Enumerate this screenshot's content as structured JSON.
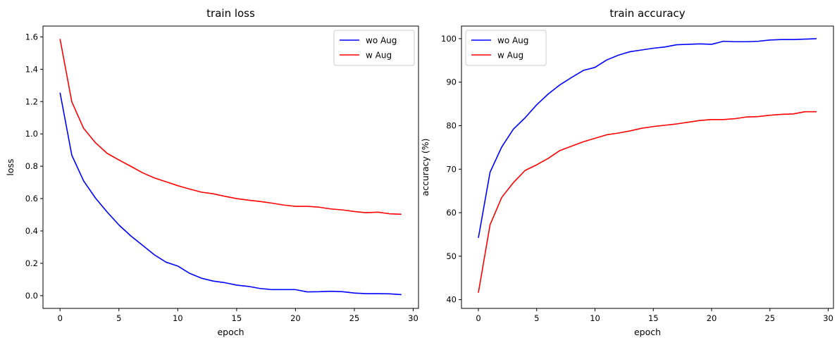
{
  "chart_data": [
    {
      "type": "line",
      "title": "train loss",
      "xlabel": "epoch",
      "ylabel": "loss",
      "xlim": [
        -1.45,
        30.45
      ],
      "ylim": [
        -0.079,
        1.667
      ],
      "xticks": [
        0,
        5,
        10,
        15,
        20,
        25,
        30
      ],
      "yticks": [
        0.0,
        0.2,
        0.4,
        0.6,
        0.8,
        1.0,
        1.2,
        1.4,
        1.6
      ],
      "grid": false,
      "legend_loc": "upper right",
      "x": [
        0,
        1,
        2,
        3,
        4,
        5,
        6,
        7,
        8,
        9,
        10,
        11,
        12,
        13,
        14,
        15,
        16,
        17,
        18,
        19,
        20,
        21,
        22,
        23,
        24,
        25,
        26,
        27,
        28,
        29
      ],
      "series": [
        {
          "name": "wo Aug",
          "color": "#0000ff",
          "values": [
            1.255,
            0.868,
            0.71,
            0.604,
            0.517,
            0.437,
            0.37,
            0.312,
            0.253,
            0.207,
            0.183,
            0.138,
            0.108,
            0.09,
            0.08,
            0.065,
            0.057,
            0.044,
            0.037,
            0.037,
            0.037,
            0.023,
            0.024,
            0.027,
            0.024,
            0.016,
            0.012,
            0.012,
            0.011,
            0.006
          ]
        },
        {
          "name": "w Aug",
          "color": "#ff0000",
          "values": [
            1.587,
            1.198,
            1.035,
            0.946,
            0.88,
            0.839,
            0.8,
            0.76,
            0.728,
            0.704,
            0.68,
            0.659,
            0.64,
            0.63,
            0.614,
            0.6,
            0.59,
            0.582,
            0.572,
            0.56,
            0.552,
            0.552,
            0.547,
            0.536,
            0.53,
            0.52,
            0.513,
            0.516,
            0.506,
            0.503
          ]
        }
      ]
    },
    {
      "type": "line",
      "title": "train accuracy",
      "xlabel": "epoch",
      "ylabel": "accuracy (%)",
      "xlim": [
        -1.45,
        30.45
      ],
      "ylim": [
        38.0,
        102.9
      ],
      "xticks": [
        0,
        5,
        10,
        15,
        20,
        25,
        30
      ],
      "yticks": [
        40,
        50,
        60,
        70,
        80,
        90,
        100
      ],
      "grid": false,
      "legend_loc": "upper left",
      "x": [
        0,
        1,
        2,
        3,
        4,
        5,
        6,
        7,
        8,
        9,
        10,
        11,
        12,
        13,
        14,
        15,
        16,
        17,
        18,
        19,
        20,
        21,
        22,
        23,
        24,
        25,
        26,
        27,
        28,
        29
      ],
      "series": [
        {
          "name": "wo Aug",
          "color": "#0000ff",
          "values": [
            54.2,
            69.3,
            75.1,
            79.2,
            81.8,
            84.8,
            87.3,
            89.4,
            91.1,
            92.7,
            93.4,
            95.1,
            96.2,
            97.0,
            97.4,
            97.8,
            98.1,
            98.6,
            98.7,
            98.8,
            98.7,
            99.4,
            99.3,
            99.3,
            99.4,
            99.7,
            99.8,
            99.8,
            99.9,
            100.0
          ]
        },
        {
          "name": "w Aug",
          "color": "#ff0000",
          "values": [
            41.6,
            57.2,
            63.5,
            66.9,
            69.7,
            71.0,
            72.5,
            74.3,
            75.3,
            76.3,
            77.1,
            77.9,
            78.3,
            78.8,
            79.4,
            79.8,
            80.1,
            80.4,
            80.8,
            81.2,
            81.4,
            81.4,
            81.6,
            82.0,
            82.1,
            82.4,
            82.6,
            82.7,
            83.2,
            83.2
          ]
        }
      ]
    }
  ]
}
